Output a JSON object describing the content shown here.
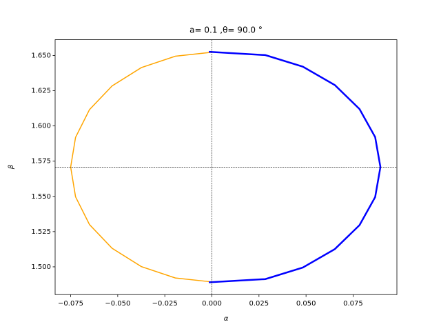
{
  "chart_data": {
    "type": "line",
    "title": "a= 0.1 ,θ= 90.0 °",
    "x_label": "α",
    "y_label": "β",
    "xlim": [
      -0.08325,
      0.09825
    ],
    "ylim": [
      1.4803,
      1.6612
    ],
    "xticks": [
      {
        "value": -0.075,
        "label": "−0.075"
      },
      {
        "value": -0.05,
        "label": "−0.050"
      },
      {
        "value": -0.025,
        "label": "−0.025"
      },
      {
        "value": 0,
        "label": "0.000"
      },
      {
        "value": 0.025,
        "label": "0.025"
      },
      {
        "value": 0.05,
        "label": "0.050"
      },
      {
        "value": 0.075,
        "label": "0.075"
      }
    ],
    "yticks": [
      {
        "value": 1.5,
        "label": "1.500"
      },
      {
        "value": 1.525,
        "label": "1.525"
      },
      {
        "value": 1.55,
        "label": "1.550"
      },
      {
        "value": 1.575,
        "label": "1.575"
      },
      {
        "value": 1.6,
        "label": "1.600"
      },
      {
        "value": 1.625,
        "label": "1.625"
      },
      {
        "value": 1.65,
        "label": "1.650"
      }
    ],
    "vlines": [
      0
    ],
    "hlines": [
      1.5708
    ],
    "series": [
      {
        "color": "#ffa500",
        "width": 1.5,
        "x": [
          0,
          -0.0194,
          -0.0375,
          -0.053,
          -0.065,
          -0.0724,
          -0.075,
          -0.0724,
          -0.065,
          -0.053,
          -0.0375,
          -0.0194,
          0
        ],
        "y": [
          1.6523,
          1.6495,
          1.6414,
          1.6284,
          1.6116,
          1.5919,
          1.5708,
          1.5497,
          1.53,
          1.5132,
          1.5002,
          1.4921,
          1.4893
        ]
      },
      {
        "color": "#0000ff",
        "width": 2.5,
        "x": [
          -0.0016,
          0.0284,
          0.0483,
          0.0653,
          0.0784,
          0.0867,
          0.0895,
          0.0867,
          0.0784,
          0.0653,
          0.0483,
          0.0284,
          -0.0016
        ],
        "y": [
          1.6526,
          1.6503,
          1.6421,
          1.629,
          1.612,
          1.5921,
          1.5708,
          1.5495,
          1.5296,
          1.5126,
          1.4995,
          1.4913,
          1.489
        ]
      }
    ]
  }
}
